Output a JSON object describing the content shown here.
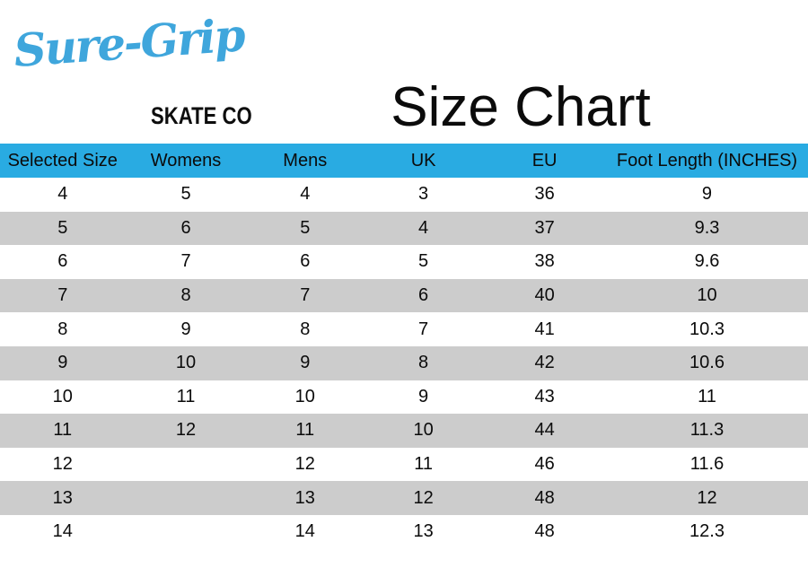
{
  "logo": {
    "script_text": "Sure-Grip",
    "sub_text": "SKATE CO"
  },
  "title": "Size Chart",
  "colors": {
    "header_bg": "#29ABE2",
    "logo_blue": "#3FA6DC",
    "row_alt_bg": "#CCCCCC",
    "text": "#0b0b0b"
  },
  "chart_data": {
    "type": "table",
    "title": "Size Chart",
    "columns": [
      "Selected Size",
      "Womens",
      "Mens",
      "UK",
      "EU",
      "Foot Length (INCHES)"
    ],
    "rows": [
      [
        "4",
        "5",
        "4",
        "3",
        "36",
        "9"
      ],
      [
        "5",
        "6",
        "5",
        "4",
        "37",
        "9.3"
      ],
      [
        "6",
        "7",
        "6",
        "5",
        "38",
        "9.6"
      ],
      [
        "7",
        "8",
        "7",
        "6",
        "40",
        "10"
      ],
      [
        "8",
        "9",
        "8",
        "7",
        "41",
        "10.3"
      ],
      [
        "9",
        "10",
        "9",
        "8",
        "42",
        "10.6"
      ],
      [
        "10",
        "11",
        "10",
        "9",
        "43",
        "11"
      ],
      [
        "11",
        "12",
        "11",
        "10",
        "44",
        "11.3"
      ],
      [
        "12",
        "",
        "12",
        "11",
        "46",
        "11.6"
      ],
      [
        "13",
        "",
        "13",
        "12",
        "48",
        "12"
      ],
      [
        "14",
        "",
        "14",
        "13",
        "48",
        "12.3"
      ]
    ],
    "layout": {
      "column_widths_pct": [
        15.5,
        15.0,
        14.5,
        14.8,
        15.2,
        25.0
      ],
      "alternating_rows": "white/gray starting white",
      "header_style": "solid cyan band, black centered labels"
    }
  }
}
